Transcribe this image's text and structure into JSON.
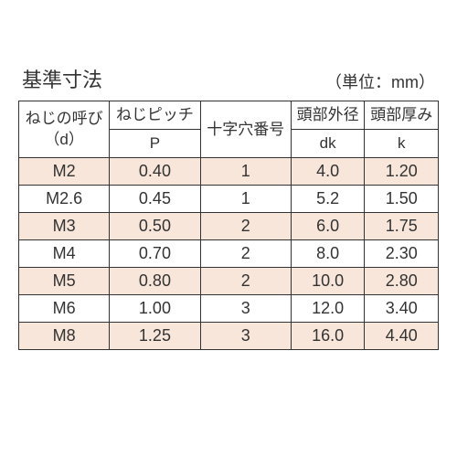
{
  "title": "基準寸法",
  "unit_label": "（単位：mm）",
  "table": {
    "columns": [
      {
        "main": "ねじの呼び",
        "sub": "（d）"
      },
      {
        "main": "ねじピッチ",
        "sub": "P"
      },
      {
        "main": "十字穴番号",
        "sub": ""
      },
      {
        "main": "頭部外径",
        "sub": "dk"
      },
      {
        "main": "頭部厚み",
        "sub": "k"
      }
    ],
    "rows": [
      [
        "M2",
        "0.40",
        "1",
        "4.0",
        "1.20"
      ],
      [
        "M2.6",
        "0.45",
        "1",
        "5.2",
        "1.50"
      ],
      [
        "M3",
        "0.50",
        "2",
        "6.0",
        "1.75"
      ],
      [
        "M4",
        "0.70",
        "2",
        "8.0",
        "2.30"
      ],
      [
        "M5",
        "0.80",
        "2",
        "10.0",
        "2.80"
      ],
      [
        "M6",
        "1.00",
        "3",
        "12.0",
        "3.40"
      ],
      [
        "M8",
        "1.25",
        "3",
        "16.0",
        "4.40"
      ]
    ],
    "colors": {
      "row_odd_bg": "#f7e6d9",
      "row_even_bg": "#ffffff",
      "border": "#333333",
      "text": "#333333",
      "background": "#ffffff"
    },
    "fontsize": {
      "title": 22,
      "unit": 18,
      "header": 17,
      "cell": 18
    }
  }
}
